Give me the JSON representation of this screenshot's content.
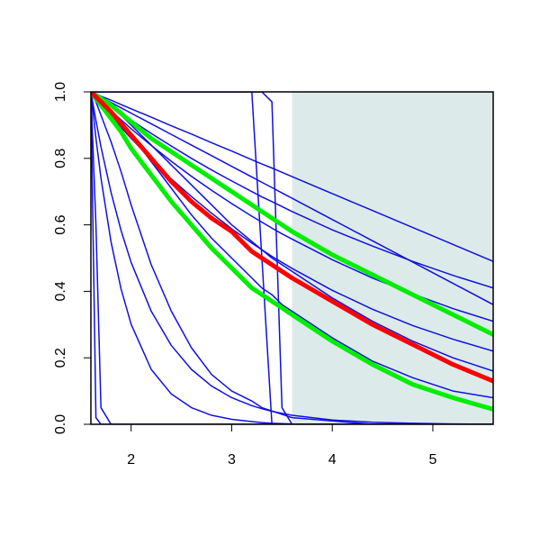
{
  "chart_data": {
    "type": "line",
    "xlim": [
      1.6,
      5.6
    ],
    "ylim": [
      0,
      1
    ],
    "xticks": [
      2,
      3,
      4,
      5
    ],
    "yticks": [
      {
        "value": 0,
        "label": "0.0"
      },
      {
        "value": 0.2,
        "label": "0.2"
      },
      {
        "value": 0.4,
        "label": "0.4"
      },
      {
        "value": 0.6,
        "label": "0.6"
      },
      {
        "value": 0.8,
        "label": "0.8"
      },
      {
        "value": 1,
        "label": "1.0"
      }
    ],
    "shaded_region": {
      "x": [
        3.6,
        5.6
      ],
      "color": "#dcebea"
    },
    "x": [
      1.6,
      1.65,
      1.7,
      1.8,
      1.9,
      2.0,
      2.2,
      2.4,
      2.6,
      2.8,
      3.0,
      3.2,
      3.3,
      3.4,
      3.5,
      3.6,
      4.0,
      4.4,
      4.8,
      5.2,
      5.6
    ],
    "series": [
      {
        "color": "#1010e0",
        "width": 1.5,
        "values": [
          1,
          0.994,
          0.987,
          0.975,
          0.962,
          0.949,
          0.924,
          0.898,
          0.873,
          0.847,
          0.822,
          0.796,
          0.783,
          0.771,
          0.758,
          0.745,
          0.694,
          0.643,
          0.592,
          0.541,
          0.49
        ]
      },
      {
        "color": "#1010e0",
        "width": 1.5,
        "values": [
          1,
          0.989,
          0.978,
          0.956,
          0.935,
          0.915,
          0.875,
          0.837,
          0.8,
          0.765,
          0.732,
          0.7,
          0.684,
          0.67,
          0.655,
          0.64,
          0.585,
          0.536,
          0.49,
          0.448,
          0.41
        ]
      },
      {
        "color": "#1010e0",
        "width": 1.5,
        "values": [
          1,
          0.992,
          0.984,
          0.968,
          0.952,
          0.936,
          0.904,
          0.872,
          0.84,
          0.808,
          0.776,
          0.744,
          0.728,
          0.712,
          0.696,
          0.68,
          0.616,
          0.552,
          0.488,
          0.424,
          0.36
        ]
      },
      {
        "color": "#1010e0",
        "width": 1.5,
        "values": [
          1,
          0.985,
          0.971,
          0.943,
          0.916,
          0.889,
          0.839,
          0.791,
          0.746,
          0.704,
          0.664,
          0.626,
          0.608,
          0.59,
          0.573,
          0.557,
          0.495,
          0.44,
          0.392,
          0.348,
          0.31
        ]
      },
      {
        "color": "#1010e0",
        "width": 1.5,
        "values": [
          1,
          0.981,
          0.963,
          0.927,
          0.893,
          0.86,
          0.797,
          0.738,
          0.685,
          0.635,
          0.588,
          0.545,
          0.525,
          0.505,
          0.487,
          0.469,
          0.403,
          0.346,
          0.297,
          0.256,
          0.22
        ]
      },
      {
        "color": "#1010e0",
        "width": 1.5,
        "values": [
          1,
          0.99,
          0.98,
          0.955,
          0.93,
          0.9,
          0.84,
          0.78,
          0.72,
          0.66,
          0.6,
          0.55,
          0.525,
          0.5,
          0.48,
          0.46,
          0.38,
          0.31,
          0.25,
          0.2,
          0.16
        ]
      },
      {
        "color": "#1010e0",
        "width": 1.5,
        "values": [
          1,
          0.985,
          0.97,
          0.94,
          0.905,
          0.87,
          0.79,
          0.71,
          0.63,
          0.56,
          0.5,
          0.44,
          0.41,
          0.39,
          0.36,
          0.34,
          0.26,
          0.19,
          0.14,
          0.1,
          0.08
        ]
      },
      {
        "color": "#1010e0",
        "width": 1.5,
        "values": [
          1,
          0.02,
          0,
          0,
          0,
          0,
          0,
          0,
          0,
          0,
          0,
          0,
          0,
          0,
          0,
          0,
          0,
          0,
          0,
          0,
          0
        ]
      },
      {
        "color": "#1010e0",
        "width": 1.5,
        "values": [
          1,
          0.6,
          0.05,
          0,
          0,
          0,
          0,
          0,
          0,
          0,
          0,
          0,
          0,
          0,
          0,
          0,
          0,
          0,
          0,
          0,
          0
        ]
      },
      {
        "color": "#1010e0",
        "width": 1.5,
        "values": [
          1,
          0.861,
          0.741,
          0.549,
          0.407,
          0.301,
          0.165,
          0.091,
          0.05,
          0.027,
          0.015,
          0.008,
          0.005,
          0.003,
          0.002,
          0.001,
          0,
          0,
          0,
          0,
          0
        ]
      },
      {
        "color": "#1010e0",
        "width": 1.5,
        "values": [
          1,
          0.914,
          0.835,
          0.698,
          0.583,
          0.487,
          0.34,
          0.237,
          0.165,
          0.115,
          0.08,
          0.056,
          0.047,
          0.039,
          0.033,
          0.027,
          0.013,
          0.006,
          0.003,
          0.001,
          0
        ]
      },
      {
        "color": "#1010e0",
        "width": 1.5,
        "values": [
          1,
          0.97,
          0.93,
          0.85,
          0.76,
          0.66,
          0.48,
          0.34,
          0.23,
          0.15,
          0.1,
          0.07,
          0.05,
          0.04,
          0.03,
          0.02,
          0.01,
          0,
          0,
          0,
          0
        ]
      },
      {
        "color": "#1010e0",
        "width": 1.5,
        "values": [
          1,
          1,
          1,
          1,
          1,
          1,
          1,
          1,
          1,
          1,
          1,
          1,
          0.5,
          0,
          0,
          0,
          0,
          0,
          0,
          0,
          0
        ]
      },
      {
        "color": "#1010e0",
        "width": 1.5,
        "values": [
          1,
          1,
          1,
          1,
          1,
          1,
          1,
          1,
          1,
          1,
          1,
          1,
          1,
          0.97,
          0.05,
          0,
          0,
          0,
          0,
          0,
          0
        ]
      },
      {
        "color": "#00ee00",
        "width": 5,
        "values": [
          1,
          0.99,
          0.98,
          0.96,
          0.935,
          0.91,
          0.86,
          0.82,
          0.78,
          0.74,
          0.7,
          0.66,
          0.64,
          0.62,
          0.6,
          0.58,
          0.51,
          0.45,
          0.39,
          0.33,
          0.27
        ]
      },
      {
        "color": "#00ee00",
        "width": 5,
        "values": [
          1,
          0.98,
          0.96,
          0.92,
          0.88,
          0.83,
          0.75,
          0.67,
          0.6,
          0.53,
          0.47,
          0.41,
          0.39,
          0.37,
          0.35,
          0.33,
          0.25,
          0.18,
          0.12,
          0.08,
          0.045
        ]
      },
      {
        "color": "#ff0000",
        "width": 5,
        "values": [
          1,
          0.985,
          0.97,
          0.94,
          0.905,
          0.87,
          0.8,
          0.73,
          0.67,
          0.62,
          0.58,
          0.52,
          0.5,
          0.48,
          0.46,
          0.44,
          0.37,
          0.3,
          0.24,
          0.18,
          0.13
        ]
      }
    ]
  }
}
